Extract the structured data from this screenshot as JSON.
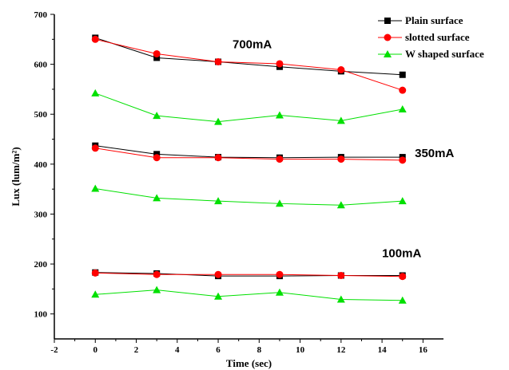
{
  "chart_data": {
    "type": "line",
    "xlabel": "Time (sec)",
    "ylabel": "Lux (lum/m²)",
    "xlim": [
      -2,
      17
    ],
    "ylim": [
      50,
      700
    ],
    "xticks": [
      -2,
      0,
      2,
      4,
      6,
      8,
      10,
      12,
      14,
      16
    ],
    "yticks": [
      100,
      200,
      300,
      400,
      500,
      600,
      700
    ],
    "grid": false,
    "legend": {
      "position": "top-right",
      "entries": [
        "Plain surface",
        "slotted surface",
        "W shaped surface"
      ]
    },
    "colors": {
      "plain": "#000000",
      "slotted": "#ff0000",
      "wshaped": "#00e000"
    },
    "x": [
      0,
      3,
      6,
      9,
      12,
      15
    ],
    "groups": [
      {
        "label": "700mA",
        "label_at": [
          6.7,
          632
        ],
        "plain": [
          653,
          613,
          605,
          595,
          586,
          579
        ],
        "slotted": [
          650,
          621,
          605,
          601,
          589,
          548
        ],
        "wshaped": [
          542,
          497,
          485,
          498,
          487,
          510
        ]
      },
      {
        "label": "350mA",
        "label_at": [
          15.6,
          414
        ],
        "plain": [
          437,
          420,
          414,
          413,
          414,
          414
        ],
        "slotted": [
          432,
          413,
          413,
          410,
          410,
          408
        ],
        "wshaped": [
          351,
          332,
          326,
          321,
          318,
          326
        ]
      },
      {
        "label": "100mA",
        "label_at": [
          14.0,
          214
        ],
        "plain": [
          183,
          181,
          176,
          176,
          177,
          177
        ],
        "slotted": [
          182,
          179,
          179,
          179,
          177,
          175
        ],
        "wshaped": [
          139,
          148,
          135,
          143,
          129,
          127
        ]
      }
    ]
  }
}
